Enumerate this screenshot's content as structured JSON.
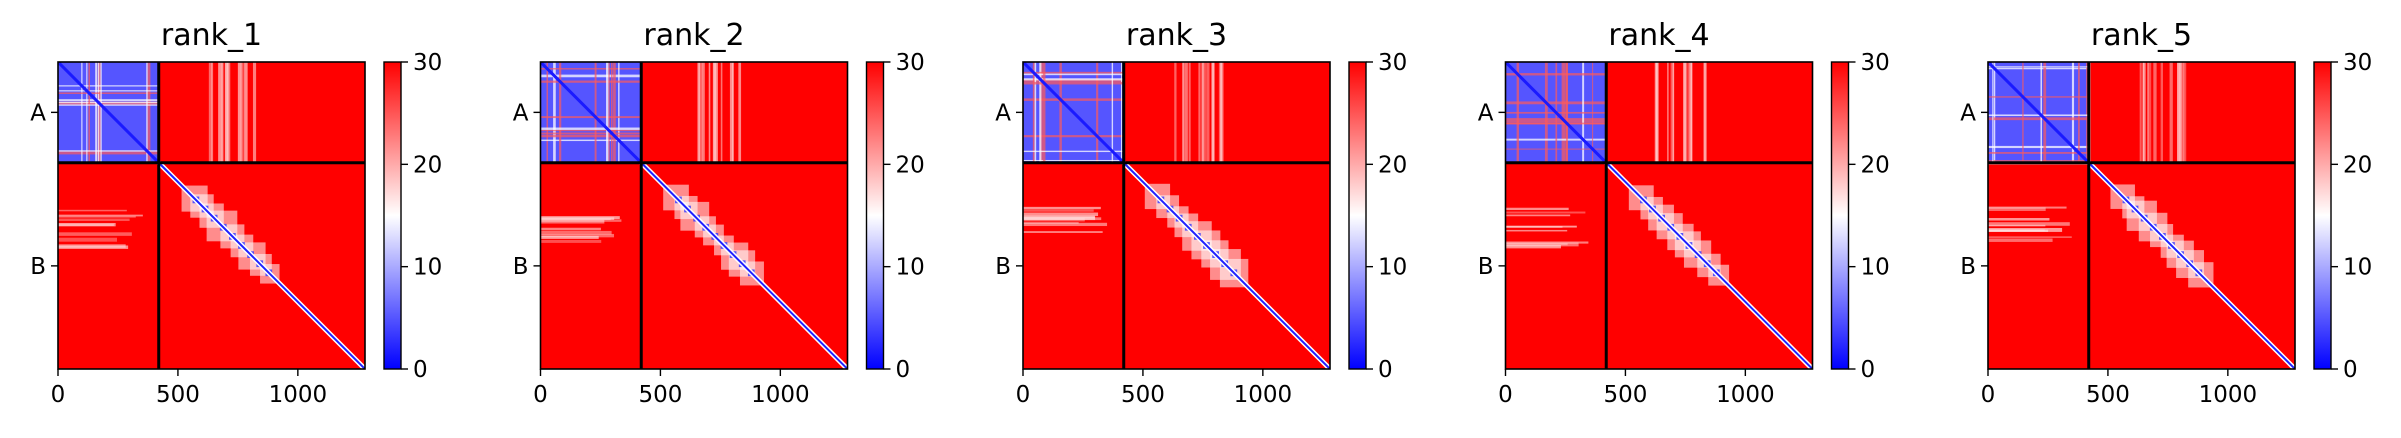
{
  "figure": {
    "panels": [
      {
        "title": "rank_1"
      },
      {
        "title": "rank_2"
      },
      {
        "title": "rank_3"
      },
      {
        "title": "rank_4"
      },
      {
        "title": "rank_5"
      }
    ]
  },
  "chart_data": {
    "type": "heatmap",
    "layout": "1x5 small multiples with individual colorbars",
    "colormap": [
      "#0000ff",
      "#ffffff",
      "#ff0000"
    ],
    "colormap_name": "bwr",
    "color_range": [
      0,
      30
    ],
    "colorbar_ticks": [
      "0",
      "10",
      "20",
      "30"
    ],
    "x_range": [
      0,
      1280
    ],
    "x_ticks": [
      "0",
      "500",
      "1000"
    ],
    "x_tick_values": [
      0,
      500,
      1000
    ],
    "chain_boundary": 420,
    "chains": [
      {
        "name": "A",
        "start": 0,
        "end": 420
      },
      {
        "name": "B",
        "start": 420,
        "end": 1280
      }
    ],
    "y_tick_labels": [
      "A",
      "B"
    ],
    "panels": [
      {
        "title": "rank_1",
        "inter_chain_value": 30,
        "intra_chain_A_value": 5,
        "intra_chain_B_value": 30
      },
      {
        "title": "rank_2",
        "inter_chain_value": 30,
        "intra_chain_A_value": 5,
        "intra_chain_B_value": 30
      },
      {
        "title": "rank_3",
        "inter_chain_value": 30,
        "intra_chain_A_value": 5,
        "intra_chain_B_value": 30
      },
      {
        "title": "rank_4",
        "inter_chain_value": 30,
        "intra_chain_A_value": 5,
        "intra_chain_B_value": 30
      },
      {
        "title": "rank_5",
        "inter_chain_value": 30,
        "intra_chain_A_value": 5,
        "intra_chain_B_value": 30
      }
    ]
  }
}
